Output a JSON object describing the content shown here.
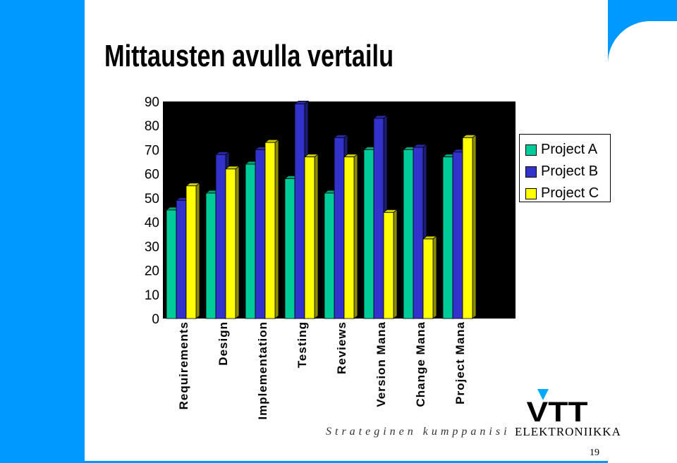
{
  "title": "Mittausten avulla vertailu",
  "footer": {
    "tagline": "Strateginen kumppanisi",
    "logo_text": "VTT",
    "logo_subtitle": "ELEKTRONIIKKA",
    "page_number": "19"
  },
  "colors": {
    "background": "#0099ff",
    "project_a": "#00cc99",
    "project_b": "#3333cc",
    "project_c": "#ffff00",
    "plot_bg": "#000000"
  },
  "chart_data": {
    "type": "bar",
    "title": "Mittausten avulla vertailu",
    "categories": [
      "Requirements",
      "Design",
      "Implementation",
      "Testing",
      "Reviews",
      "Version Mana",
      "Change Mana",
      "Project Mana"
    ],
    "series": [
      {
        "name": "Project A",
        "values": [
          45,
          52,
          64,
          58,
          52,
          70,
          70,
          67
        ]
      },
      {
        "name": "Project B",
        "values": [
          49,
          68,
          70,
          89,
          75,
          83,
          71,
          69
        ]
      },
      {
        "name": "Project C",
        "values": [
          55,
          62,
          73,
          67,
          67,
          44,
          33,
          75
        ]
      }
    ],
    "y_ticks": [
      0,
      10,
      20,
      30,
      40,
      50,
      60,
      70,
      80,
      90
    ],
    "ylim": [
      0,
      90
    ],
    "legend": "right",
    "xlabel": "",
    "ylabel": ""
  }
}
